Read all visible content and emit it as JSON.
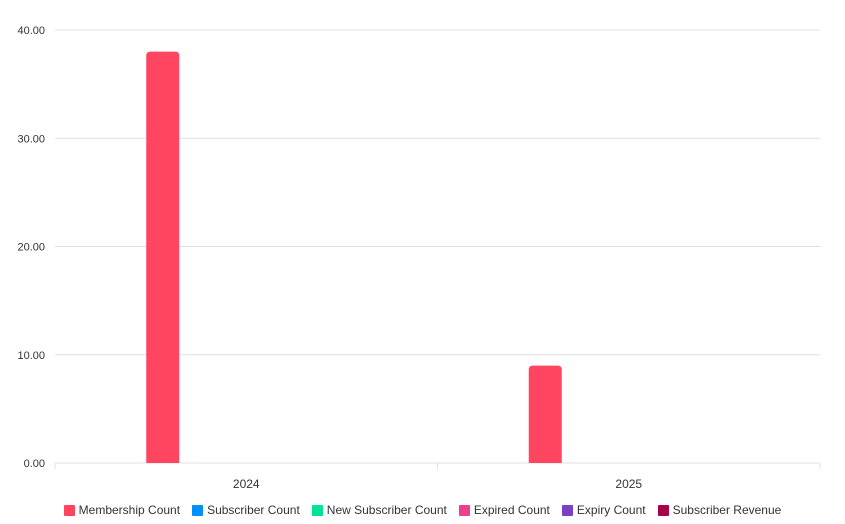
{
  "chart_data": {
    "type": "bar",
    "categories": [
      "2024",
      "2025"
    ],
    "ylim": [
      0,
      40
    ],
    "yticks": [
      "0.00",
      "10.00",
      "20.00",
      "30.00",
      "40.00"
    ],
    "grid": true,
    "legend_position": "bottom",
    "series": [
      {
        "name": "Membership Count",
        "color": "#ff4560",
        "values": [
          38,
          9
        ]
      },
      {
        "name": "Subscriber Count",
        "color": "#008ffb",
        "values": [
          0,
          0
        ]
      },
      {
        "name": "New Subscriber Count",
        "color": "#00e396",
        "values": [
          0,
          0
        ]
      },
      {
        "name": "Expired Count",
        "color": "#ee3f8f",
        "values": [
          0,
          0
        ]
      },
      {
        "name": "Expiry Count",
        "color": "#7b40c4",
        "values": [
          0,
          0
        ]
      },
      {
        "name": "Subscriber Revenue",
        "color": "#a8004c",
        "values": [
          0,
          0
        ]
      }
    ]
  }
}
